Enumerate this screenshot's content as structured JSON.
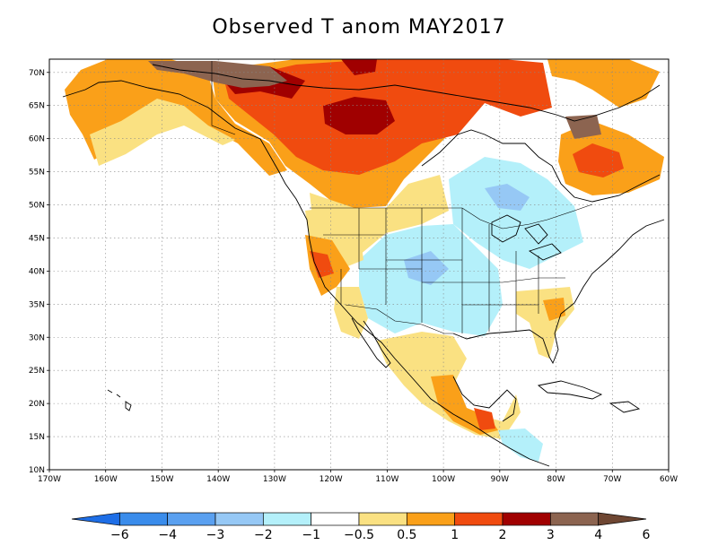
{
  "title": "Observed T anom MAY2017",
  "map": {
    "lon_range": [
      -170,
      -60
    ],
    "lat_range": [
      10,
      72
    ],
    "lat_ticks": [
      "10N",
      "15N",
      "20N",
      "25N",
      "30N",
      "35N",
      "40N",
      "45N",
      "50N",
      "55N",
      "60N",
      "65N",
      "70N"
    ],
    "lon_ticks": [
      "170W",
      "160W",
      "150W",
      "140W",
      "130W",
      "120W",
      "110W",
      "100W",
      "90W",
      "80W",
      "70W",
      "60W"
    ],
    "grid": "dotted"
  },
  "colorbar": {
    "orientation": "horizontal",
    "placement": "bottom",
    "labels": [
      "−6",
      "−4",
      "−3",
      "−2",
      "−1",
      "−0.5",
      "0.5",
      "1",
      "2",
      "3",
      "4",
      "6"
    ],
    "colors": [
      "#1e6ee6",
      "#3a8ceb",
      "#5aa0f0",
      "#96c8f5",
      "#b4f0fa",
      "#ffffff",
      "#fae182",
      "#faa019",
      "#f04b0f",
      "#a00000",
      "#8c6450",
      "#6e4632"
    ]
  },
  "anomaly_regions": [
    {
      "region": "Alaska",
      "anomaly_range": "0.5 to 2"
    },
    {
      "region": "Arctic coast Yukon",
      "anomaly_range": "4 to 6"
    },
    {
      "region": "Northwest Territories / Nunavut",
      "anomaly_range": "2 to 4"
    },
    {
      "region": "Western Canada",
      "anomaly_range": "1 to 3"
    },
    {
      "region": "Northern Quebec",
      "anomaly_range": "2 to 6"
    },
    {
      "region": "Great Lakes / Ontario",
      "anomaly_range": "-0.5 to -1"
    },
    {
      "region": "Central Plains / Rockies",
      "anomaly_range": "-0.5 to -1"
    },
    {
      "region": "California / Oregon",
      "anomaly_range": "0.5 to 3"
    },
    {
      "region": "Southeast US",
      "anomaly_range": "0.5 to 2"
    },
    {
      "region": "Southern Mexico",
      "anomaly_range": "0.5 to 3"
    },
    {
      "region": "Central America",
      "anomaly_range": "-0.5 to -1"
    }
  ]
}
